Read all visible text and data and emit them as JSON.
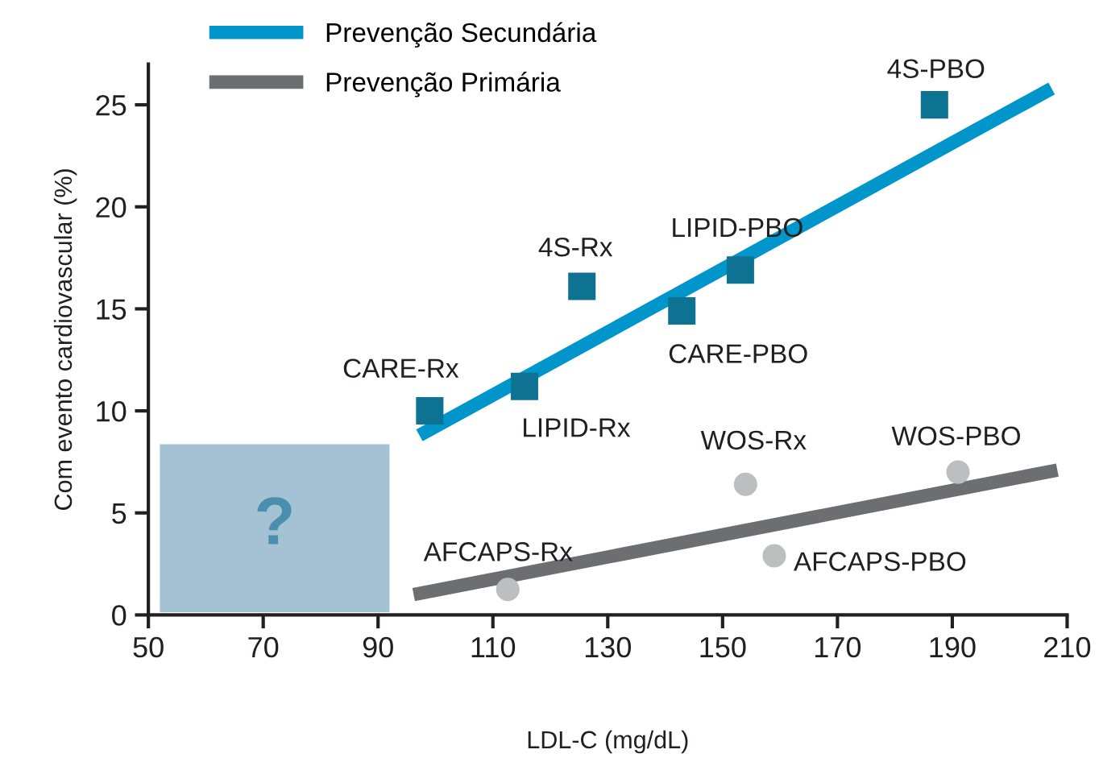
{
  "chart_data": {
    "type": "scatter",
    "xlabel": "LDL-C (mg/dL)",
    "ylabel": "Com evento cardiovascular (%)",
    "xlim": [
      50,
      210
    ],
    "xticks": [
      50,
      70,
      90,
      110,
      130,
      150,
      170,
      190,
      210
    ],
    "ylim": [
      0,
      27
    ],
    "yticks": [
      0,
      5,
      10,
      15,
      20,
      25
    ],
    "grid": false,
    "legend": "top left",
    "series": [
      {
        "name": "Prevenção Secundária",
        "type": "line",
        "color": "#0096cc",
        "marker": "none",
        "line_style": "solid",
        "x": [
          97.2,
          207.3
        ],
        "values": [
          8.8,
          25.8
        ]
      },
      {
        "name": "Prevenção Primária",
        "type": "line",
        "color": "#6d6e71",
        "marker": "none",
        "line_style": "solid",
        "x": [
          96.2,
          208.3
        ],
        "values": [
          1.0,
          7.1
        ]
      },
      {
        "color": "#0e7393",
        "marker": "square",
        "x": [
          99,
          115.5,
          125.5,
          142.9,
          153.1,
          186.9
        ],
        "values": [
          10,
          11.2,
          16.1,
          14.9,
          16.9,
          25
        ]
      },
      {
        "color": "#bcbec0",
        "marker": "circle",
        "x": [
          112.6,
          154,
          159,
          191
        ],
        "values": [
          1.25,
          6.4,
          2.9,
          7.0
        ]
      }
    ],
    "annotations": [
      {
        "text": "CARE-Rx",
        "x": 99,
        "y": 10
      },
      {
        "text": "LIPID-Rx",
        "x": 115.5,
        "y": 11.2
      },
      {
        "text": "4S-Rx",
        "x": 125.5,
        "y": 16.1
      },
      {
        "text": "CARE-PBO",
        "x": 142.9,
        "y": 14.9
      },
      {
        "text": "LIPID-PBO",
        "x": 153.1,
        "y": 16.9
      },
      {
        "text": "4S-PBO",
        "x": 186.9,
        "y": 25
      },
      {
        "text": "AFCAPS-Rx",
        "x": 112.6,
        "y": 1.25
      },
      {
        "text": "WOS-Rx",
        "x": 154,
        "y": 6.4
      },
      {
        "text": "AFCAPS-PBO",
        "x": 159,
        "y": 2.9
      },
      {
        "text": "WOS-PBO",
        "x": 191,
        "y": 7.0
      },
      "?"
    ]
  }
}
